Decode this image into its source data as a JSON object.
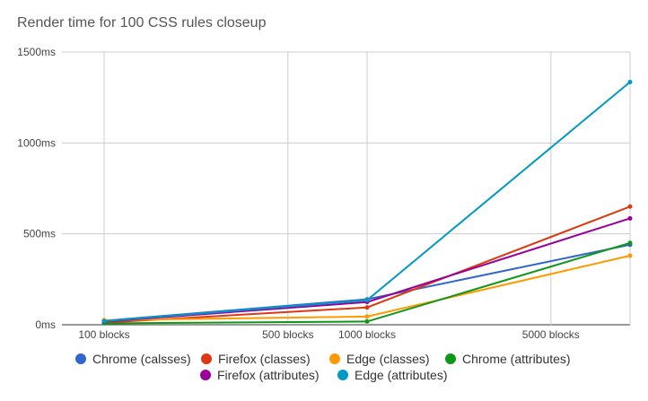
{
  "chart_data": {
    "type": "line",
    "title": "Render time for 100 CSS rules closeup",
    "xlabel": "",
    "ylabel": "",
    "ylim": [
      0,
      1500
    ],
    "y_ticks": [
      {
        "value": 0,
        "label": "0ms"
      },
      {
        "value": 500,
        "label": "500ms"
      },
      {
        "value": 1000,
        "label": "1000ms"
      },
      {
        "value": 1500,
        "label": "1500ms"
      }
    ],
    "x_tick_labels": [
      "100 blocks",
      "500 blocks",
      "1000 blocks",
      "5000 blocks"
    ],
    "x_tick_positions": [
      100,
      500,
      1000,
      5000
    ],
    "x": [
      100,
      1000,
      10000
    ],
    "series": [
      {
        "name": "Chrome (calsses)",
        "color": "#3366cc",
        "values": [
          22,
          140,
          440
        ]
      },
      {
        "name": "Firefox (classes)",
        "color": "#dc3912",
        "values": [
          12,
          95,
          650
        ]
      },
      {
        "name": "Edge (classes)",
        "color": "#ff9900",
        "values": [
          25,
          45,
          380
        ]
      },
      {
        "name": "Chrome (attributes)",
        "color": "#109618",
        "values": [
          8,
          18,
          450
        ]
      },
      {
        "name": "Firefox (attributes)",
        "color": "#990099",
        "values": [
          18,
          125,
          585
        ]
      },
      {
        "name": "Edge (attributes)",
        "color": "#0099c6",
        "values": [
          20,
          135,
          1335
        ]
      }
    ],
    "grid": true,
    "legend": "bottom"
  }
}
